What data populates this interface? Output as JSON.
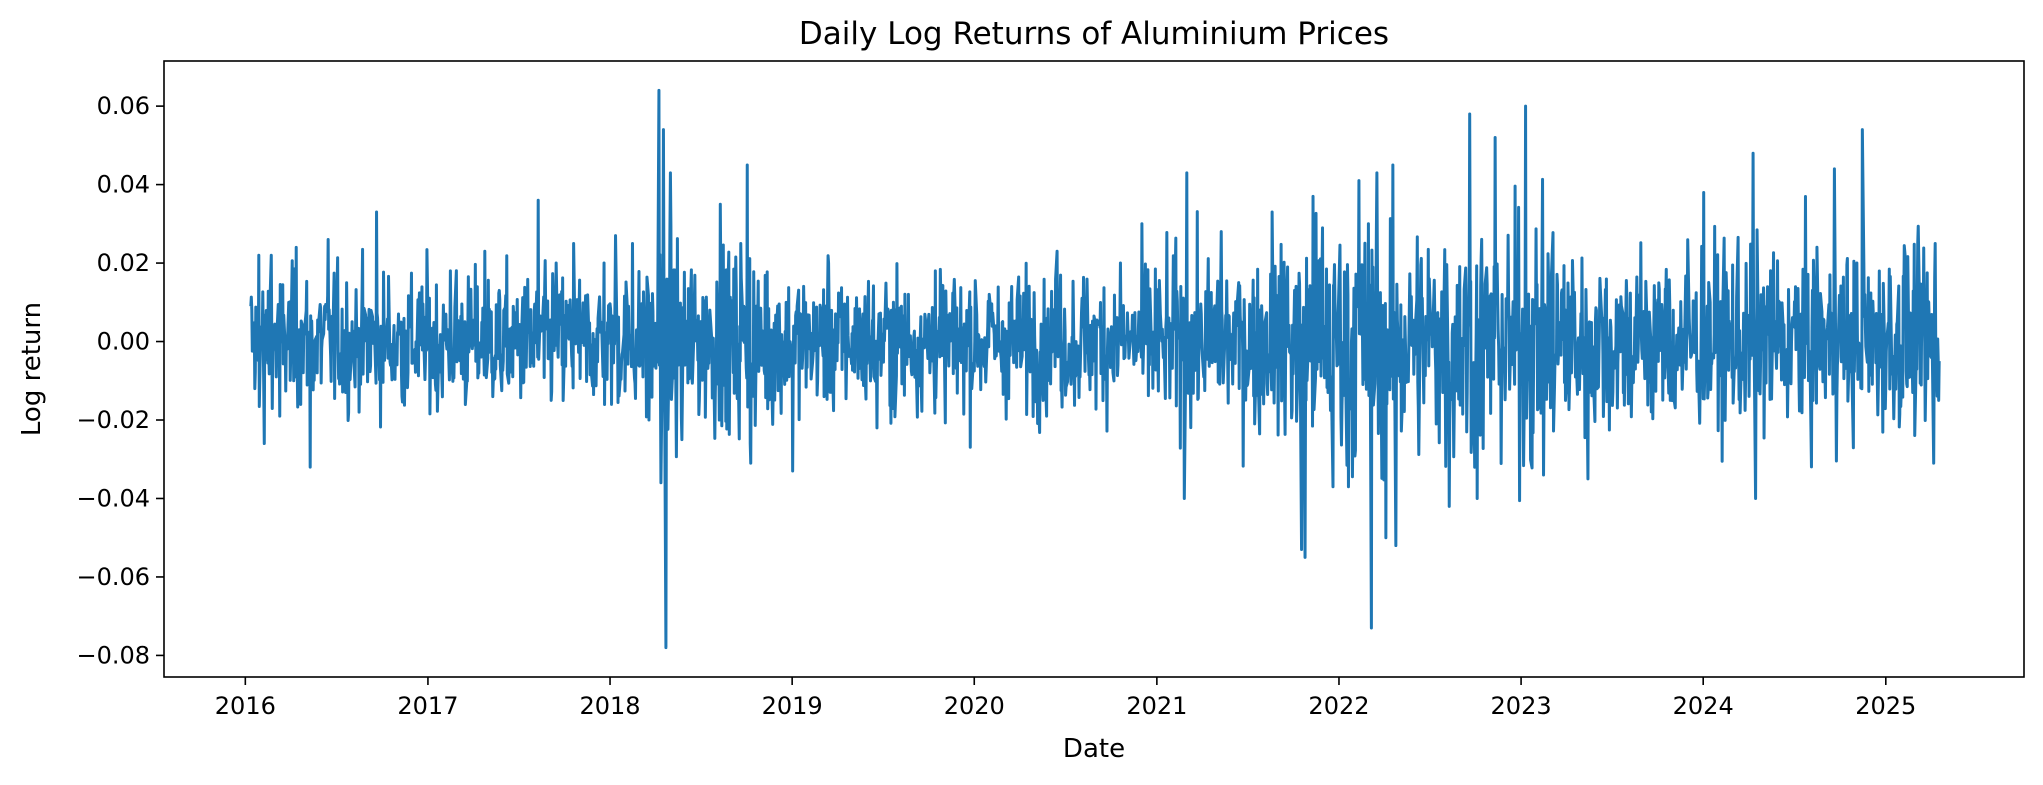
{
  "chart_data": {
    "type": "line",
    "title": "Daily Log Returns of Aluminium Prices",
    "xlabel": "Date",
    "ylabel": "Log return",
    "x_ticks": [
      "2016",
      "2017",
      "2018",
      "2019",
      "2020",
      "2021",
      "2022",
      "2023",
      "2024",
      "2025"
    ],
    "y_ticks": [
      "0.06",
      "0.04",
      "0.02",
      "0.00",
      "−0.02",
      "−0.04",
      "−0.06",
      "−0.08"
    ],
    "y_tick_values": [
      0.06,
      0.04,
      0.02,
      0.0,
      -0.02,
      -0.04,
      -0.06,
      -0.08
    ],
    "xlim": [
      "2015-07-22",
      "2025-10-05"
    ],
    "ylim": [
      -0.0855,
      0.0715
    ],
    "grid": false,
    "legend": "none",
    "series": [
      {
        "color": "#1f77b4",
        "x_start": "2016-01-12",
        "x_end": "2025-04-18",
        "description_values": "approximate daily log return readings, anchor points in chronological order",
        "points": [
          [
            "2016-01-12",
            0.009
          ],
          [
            "2016-01-20",
            -0.012
          ],
          [
            "2016-01-28",
            0.022
          ],
          [
            "2016-02-08",
            -0.026
          ],
          [
            "2016-02-22",
            0.022
          ],
          [
            "2016-03-10",
            -0.019
          ],
          [
            "2016-04-12",
            0.024
          ],
          [
            "2016-05-10",
            -0.032
          ],
          [
            "2016-06-15",
            0.026
          ],
          [
            "2016-07-20",
            -0.013
          ],
          [
            "2016-09-20",
            0.033
          ],
          [
            "2016-11-10",
            -0.014
          ],
          [
            "2017-02-15",
            0.018
          ],
          [
            "2017-04-25",
            0.023
          ],
          [
            "2017-06-10",
            -0.018
          ],
          [
            "2017-08-10",
            0.036
          ],
          [
            "2017-09-15",
            0.02
          ],
          [
            "2017-10-20",
            0.025
          ],
          [
            "2017-12-20",
            0.02
          ],
          [
            "2018-01-12",
            0.027
          ],
          [
            "2018-02-15",
            0.025
          ],
          [
            "2018-03-20",
            -0.02
          ],
          [
            "2018-04-09",
            0.064
          ],
          [
            "2018-04-13",
            -0.036
          ],
          [
            "2018-04-18",
            0.054
          ],
          [
            "2018-04-23",
            -0.078
          ],
          [
            "2018-05-02",
            0.043
          ],
          [
            "2018-05-25",
            -0.025
          ],
          [
            "2018-08-10",
            0.035
          ],
          [
            "2018-09-20",
            0.025
          ],
          [
            "2018-10-03",
            0.045
          ],
          [
            "2018-10-10",
            -0.031
          ],
          [
            "2019-01-02",
            -0.033
          ],
          [
            "2019-03-15",
            0.02
          ],
          [
            "2019-06-20",
            -0.022
          ],
          [
            "2019-10-15",
            0.018
          ],
          [
            "2020-01-25",
            -0.027
          ],
          [
            "2020-03-15",
            -0.031
          ],
          [
            "2020-06-15",
            0.023
          ],
          [
            "2020-10-20",
            0.02
          ],
          [
            "2021-01-10",
            0.026
          ],
          [
            "2021-02-25",
            -0.04
          ],
          [
            "2021-03-02",
            0.043
          ],
          [
            "2021-05-10",
            0.028
          ],
          [
            "2021-06-20",
            0.035
          ],
          [
            "2021-08-20",
            0.033
          ],
          [
            "2021-10-18",
            -0.053
          ],
          [
            "2021-10-25",
            -0.055
          ],
          [
            "2021-11-10",
            0.037
          ],
          [
            "2021-12-20",
            -0.037
          ],
          [
            "2022-01-20",
            -0.037
          ],
          [
            "2022-02-10",
            0.041
          ],
          [
            "2022-03-07",
            -0.073
          ],
          [
            "2022-03-18",
            0.043
          ],
          [
            "2022-04-05",
            -0.05
          ],
          [
            "2022-04-25",
            -0.052
          ],
          [
            "2022-06-05",
            0.036
          ],
          [
            "2022-08-10",
            -0.042
          ],
          [
            "2022-09-20",
            0.058
          ],
          [
            "2022-10-05",
            -0.04
          ],
          [
            "2022-11-10",
            0.052
          ],
          [
            "2022-12-10",
            0.043
          ],
          [
            "2023-01-10",
            0.06
          ],
          [
            "2023-02-15",
            -0.034
          ],
          [
            "2023-05-15",
            -0.035
          ],
          [
            "2023-08-20",
            -0.03
          ],
          [
            "2023-09-10",
            0.035
          ],
          [
            "2024-01-02",
            0.038
          ],
          [
            "2024-04-10",
            0.048
          ],
          [
            "2024-04-15",
            -0.04
          ],
          [
            "2024-09-20",
            0.044
          ],
          [
            "2024-10-20",
            -0.034
          ],
          [
            "2024-11-15",
            0.054
          ],
          [
            "2024-11-30",
            -0.03
          ],
          [
            "2025-02-10",
            0.02
          ],
          [
            "2025-04-07",
            -0.031
          ],
          [
            "2025-04-10",
            0.025
          ],
          [
            "2025-04-18",
            -0.005
          ]
        ]
      }
    ]
  }
}
